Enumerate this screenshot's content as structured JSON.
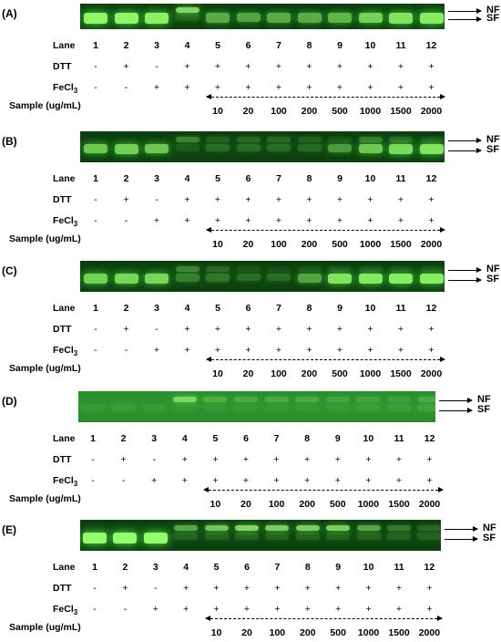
{
  "labels": {
    "lane": "Lane",
    "dtt": "DTT",
    "fecl": "FeCl",
    "fecl_sub": "3",
    "sample": "Sample (ug/mL)",
    "nf": "NF",
    "sf": "SF"
  },
  "lanes": [
    "1",
    "2",
    "3",
    "4",
    "5",
    "6",
    "7",
    "8",
    "9",
    "10",
    "11",
    "12"
  ],
  "dtt": [
    "-",
    "+",
    "-",
    "+",
    "+",
    "+",
    "+",
    "+",
    "+",
    "+",
    "+",
    "+"
  ],
  "fecl3": [
    "-",
    "-",
    "+",
    "+",
    "+",
    "+",
    "+",
    "+",
    "+",
    "+",
    "+",
    "+"
  ],
  "samples": [
    "10",
    "20",
    "100",
    "200",
    "500",
    "1000",
    "1500",
    "2000"
  ],
  "panels": [
    {
      "label": "(A)",
      "sf": [
        0.95,
        0.95,
        0.92,
        0.15,
        0.55,
        0.5,
        0.55,
        0.55,
        0.6,
        0.75,
        0.85,
        0.9
      ],
      "nf": [
        0,
        0,
        0,
        0.85,
        0,
        0,
        0,
        0,
        0,
        0,
        0,
        0
      ]
    },
    {
      "label": "(B)",
      "sf": [
        0.7,
        0.75,
        0.7,
        0.1,
        0.2,
        0.2,
        0.2,
        0.18,
        0.45,
        0.7,
        0.8,
        0.85
      ],
      "nf": [
        0,
        0,
        0,
        0.35,
        0.15,
        0.2,
        0.2,
        0.15,
        0.1,
        0.3,
        0.2,
        0.1
      ]
    },
    {
      "label": "(C)",
      "sf": [
        0.75,
        0.78,
        0.78,
        0.3,
        0.25,
        0.2,
        0.2,
        0.5,
        0.85,
        0.88,
        0.9,
        0.9
      ],
      "nf": [
        0,
        0,
        0,
        0.35,
        0.2,
        0.1,
        0.05,
        0.1,
        0.1,
        0.1,
        0.05,
        0.05
      ]
    },
    {
      "label": "(D)",
      "sf": [
        0.08,
        0.1,
        0.08,
        0.05,
        0.05,
        0.05,
        0.05,
        0.05,
        0.08,
        0.1,
        0.12,
        0.15
      ],
      "nf": [
        0,
        0,
        0,
        0.7,
        0.3,
        0.25,
        0.25,
        0.25,
        0.2,
        0.2,
        0.15,
        0.25
      ]
    },
    {
      "label": "(E)",
      "sf": [
        1,
        1,
        1,
        0.15,
        0.15,
        0.15,
        0.15,
        0.15,
        0.15,
        0.15,
        0.15,
        0.15
      ],
      "nf": [
        0,
        0,
        0,
        0.55,
        0.75,
        0.85,
        0.8,
        0.8,
        0.8,
        0.55,
        0.3,
        0.2
      ]
    }
  ]
}
